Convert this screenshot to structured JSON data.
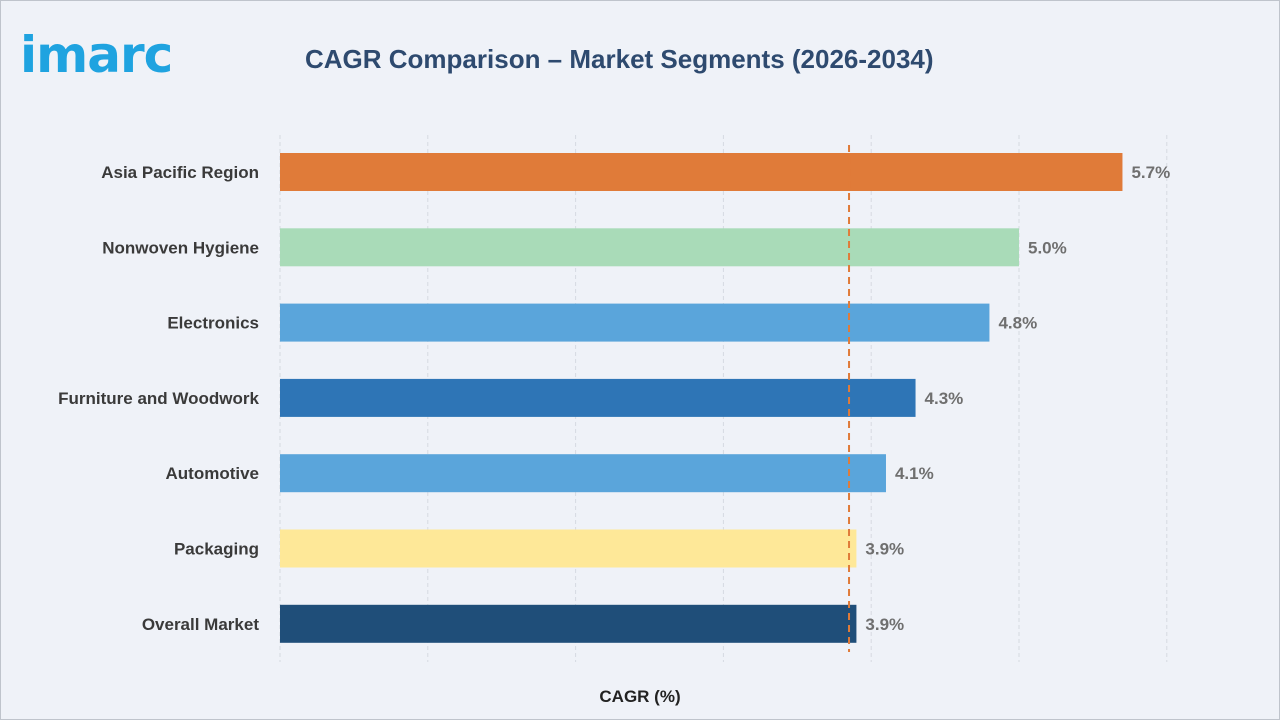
{
  "brand": {
    "logo_text": "imarc",
    "logo_color": "#1fa3e0"
  },
  "chart_data": {
    "type": "bar",
    "orientation": "horizontal",
    "title": "CAGR Comparison – Market Segments (2026-2034)",
    "xlabel": "CAGR (%)",
    "ylabel": "",
    "categories": [
      "Asia Pacific Region",
      "Nonwoven Hygiene",
      "Electronics",
      "Furniture and Woodwork",
      "Automotive",
      "Packaging",
      "Overall Market"
    ],
    "values": [
      5.7,
      5.0,
      4.8,
      4.3,
      4.1,
      3.9,
      3.9
    ],
    "value_labels": [
      "5.7%",
      "5.0%",
      "4.8%",
      "4.3%",
      "4.1%",
      "3.9%",
      "3.9%"
    ],
    "bar_colors": [
      "#e07b39",
      "#a9dbb8",
      "#5aa5db",
      "#2e75b6",
      "#5aa5db",
      "#fee898",
      "#1f4e79"
    ],
    "xlim": [
      0,
      6
    ],
    "gridlines": true,
    "reference_line": {
      "value": 3.85,
      "color": "#e07b39",
      "style": "dashed"
    }
  }
}
